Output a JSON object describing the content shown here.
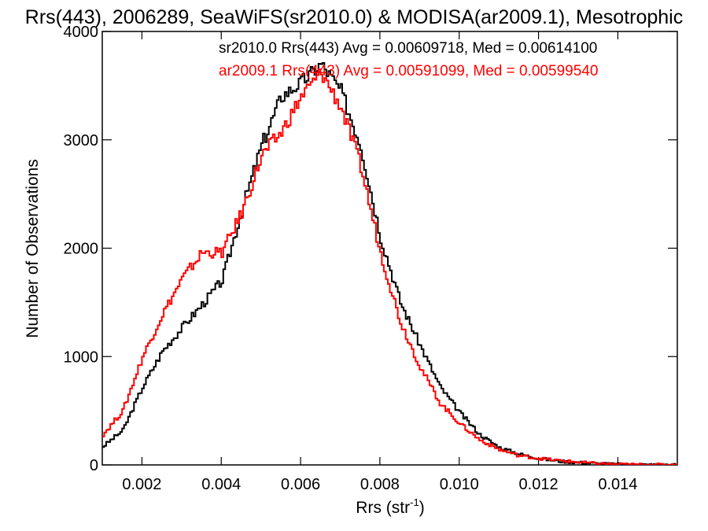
{
  "chart_data": {
    "type": "line",
    "title": "Rrs(443), 2006289, SeaWiFS(sr2010.0) & MODISA(ar2009.1), Mesotrophic",
    "xlabel": "Rrs (str",
    "xlabel_sup": "-1",
    "xlabel_close": ")",
    "ylabel": "Number of Observations",
    "xlim": [
      0.001,
      0.0155
    ],
    "ylim": [
      0,
      4000
    ],
    "xticks": [
      0.002,
      0.004,
      0.006,
      0.008,
      0.01,
      0.012,
      0.014
    ],
    "xtick_labels": [
      "0.002",
      "0.004",
      "0.006",
      "0.008",
      "0.010",
      "0.012",
      "0.014"
    ],
    "yticks": [
      0,
      1000,
      2000,
      3000,
      4000
    ],
    "ytick_labels": [
      "0",
      "1000",
      "2000",
      "3000",
      "4000"
    ],
    "legend_placement": "top-right",
    "series": [
      {
        "legend": "sr2010.0 Rrs(443) Avg = 0.00609718, Med = 0.00614100",
        "color": "#000000",
        "points": [
          [
            0.001,
            170
          ],
          [
            0.0015,
            320
          ],
          [
            0.002,
            720
          ],
          [
            0.0025,
            1050
          ],
          [
            0.003,
            1270
          ],
          [
            0.0035,
            1480
          ],
          [
            0.004,
            1700
          ],
          [
            0.0045,
            2350
          ],
          [
            0.005,
            2950
          ],
          [
            0.0055,
            3400
          ],
          [
            0.006,
            3530
          ],
          [
            0.0065,
            3700
          ],
          [
            0.007,
            3450
          ],
          [
            0.0075,
            2950
          ],
          [
            0.008,
            2100
          ],
          [
            0.0085,
            1500
          ],
          [
            0.009,
            1100
          ],
          [
            0.0095,
            720
          ],
          [
            0.01,
            480
          ],
          [
            0.0105,
            280
          ],
          [
            0.011,
            160
          ],
          [
            0.0115,
            100
          ],
          [
            0.012,
            60
          ],
          [
            0.0125,
            35
          ],
          [
            0.013,
            22
          ],
          [
            0.0135,
            12
          ],
          [
            0.014,
            6
          ],
          [
            0.0145,
            3
          ],
          [
            0.015,
            2
          ],
          [
            0.0155,
            1
          ]
        ]
      },
      {
        "legend": "ar2009.1 Rrs(443) Avg = 0.00591099, Med = 0.00599540",
        "color": "#ff0000",
        "points": [
          [
            0.001,
            280
          ],
          [
            0.0015,
            500
          ],
          [
            0.002,
            1000
          ],
          [
            0.0025,
            1390
          ],
          [
            0.003,
            1720
          ],
          [
            0.0035,
            1960
          ],
          [
            0.004,
            1960
          ],
          [
            0.0045,
            2330
          ],
          [
            0.005,
            2850
          ],
          [
            0.0055,
            3070
          ],
          [
            0.006,
            3400
          ],
          [
            0.0065,
            3620
          ],
          [
            0.007,
            3300
          ],
          [
            0.0075,
            2750
          ],
          [
            0.008,
            1950
          ],
          [
            0.0085,
            1320
          ],
          [
            0.009,
            900
          ],
          [
            0.0095,
            570
          ],
          [
            0.01,
            380
          ],
          [
            0.0105,
            230
          ],
          [
            0.011,
            140
          ],
          [
            0.0115,
            85
          ],
          [
            0.012,
            60
          ],
          [
            0.0125,
            40
          ],
          [
            0.013,
            25
          ],
          [
            0.0135,
            12
          ],
          [
            0.014,
            6
          ],
          [
            0.0145,
            3
          ],
          [
            0.015,
            2
          ],
          [
            0.0155,
            1
          ]
        ]
      }
    ]
  }
}
